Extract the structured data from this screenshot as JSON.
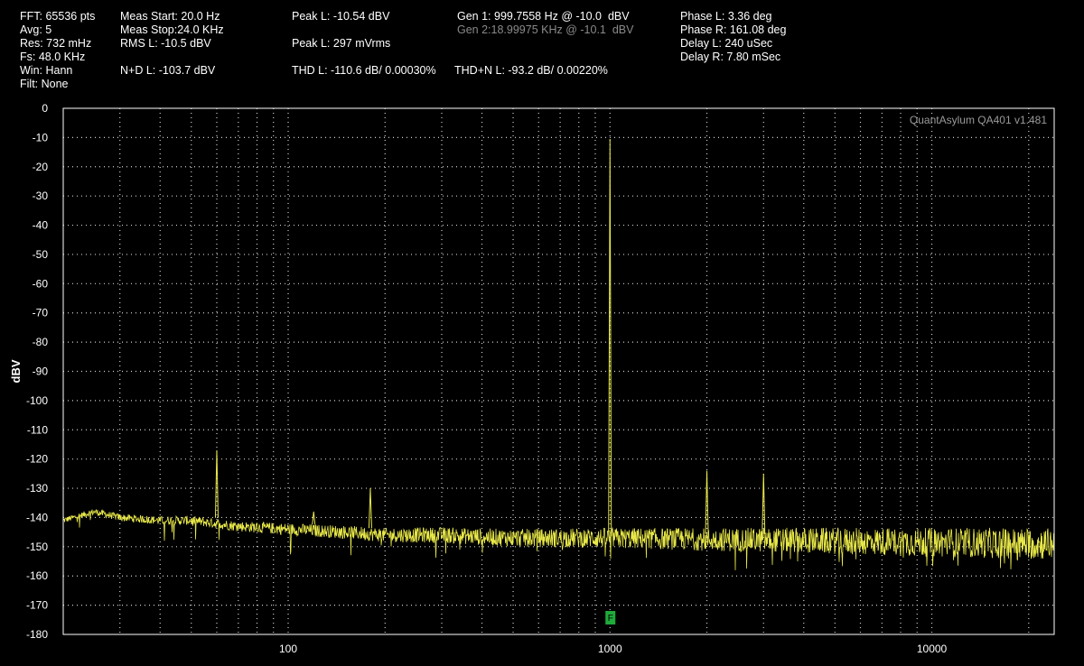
{
  "header": {
    "col1": [
      "FFT: 65536 pts",
      "Avg: 5",
      "Res: 732 mHz",
      "Fs: 48.0 KHz",
      "Win: Hann",
      "Filt: None"
    ],
    "col2": [
      "Meas Start: 20.0 Hz",
      "Meas Stop:24.0 KHz",
      "RMS L: -10.5 dBV",
      "",
      "N+D L: -103.7 dBV"
    ],
    "col3": [
      "Peak L: -10.54 dBV",
      "",
      "Peak L: 297 mVrms",
      "",
      "THD L: -110.6 dB/ 0.00030%"
    ],
    "col4": [
      "Gen 1: 999.7558 Hz @ -10.0  dBV",
      "Gen 2:18.99975 KHz @ -10.1  dBV",
      "",
      "",
      "THD+N L: -93.2 dB/ 0.00220%"
    ],
    "col5": [
      "Phase L: 3.36 deg",
      "Phase R: 161.08 deg",
      "Delay L: 240 uSec",
      "Delay R: 7.80 mSec"
    ]
  },
  "watermark": "QuantAsylum QA401 v1.481",
  "marker_label": "F",
  "colors": {
    "trace": "#e8e84a",
    "grid": "#cfcfcf",
    "marker": "#1faa3a",
    "background": "#000000"
  },
  "chart_data": {
    "type": "line",
    "title": "",
    "ylabel": "dBV",
    "xlabel": "",
    "x_scale": "log",
    "xlim": [
      20,
      24000
    ],
    "ylim": [
      -180,
      0
    ],
    "y_ticks": [
      0,
      -10,
      -20,
      -30,
      -40,
      -50,
      -60,
      -70,
      -80,
      -90,
      -100,
      -110,
      -120,
      -130,
      -140,
      -150,
      -160,
      -170,
      -180
    ],
    "x_tick_labels": [
      "100",
      "1000",
      "10000"
    ],
    "x_ticks": [
      100,
      1000,
      10000
    ],
    "grid": true,
    "noise_floor": [
      [
        20,
        -141
      ],
      [
        25,
        -138
      ],
      [
        30,
        -140
      ],
      [
        40,
        -141
      ],
      [
        50,
        -141
      ],
      [
        70,
        -143
      ],
      [
        100,
        -144
      ],
      [
        150,
        -145
      ],
      [
        200,
        -146
      ],
      [
        300,
        -146
      ],
      [
        500,
        -147
      ],
      [
        1000,
        -147
      ],
      [
        2000,
        -147.5
      ],
      [
        5000,
        -148
      ],
      [
        10000,
        -148.5
      ],
      [
        24000,
        -149
      ]
    ],
    "peaks": [
      {
        "x": 60,
        "y": -117
      },
      {
        "x": 120,
        "y": -138
      },
      {
        "x": 180,
        "y": -130
      },
      {
        "x": 999.76,
        "y": -10.5
      },
      {
        "x": 2000,
        "y": -124
      },
      {
        "x": 3000,
        "y": -125
      }
    ],
    "marker_x": 999.76
  }
}
